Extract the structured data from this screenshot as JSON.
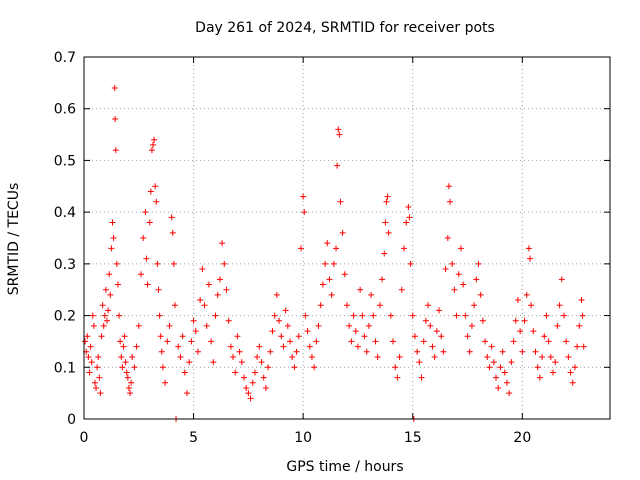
{
  "chart_data": {
    "type": "scatter",
    "title": "Day 261 of 2024, SRMTID for receiver pots",
    "xlabel": "GPS time / hours",
    "ylabel": "SRMTID / TECUs",
    "xlim": [
      0,
      24
    ],
    "ylim": [
      0,
      0.7
    ],
    "xticks": [
      "0",
      "5",
      "10",
      "15",
      "20"
    ],
    "yticks": [
      "0",
      "0.1",
      "0.2",
      "0.3",
      "0.4",
      "0.5",
      "0.6",
      "0.7"
    ],
    "grid": true,
    "marker": "+",
    "color": "#ff0000",
    "series": [
      {
        "name": "pots",
        "points": [
          [
            0.05,
            0.15
          ],
          [
            0.1,
            0.13
          ],
          [
            0.15,
            0.16
          ],
          [
            0.2,
            0.12
          ],
          [
            0.25,
            0.09
          ],
          [
            0.3,
            0.14
          ],
          [
            0.35,
            0.11
          ],
          [
            0.4,
            0.2
          ],
          [
            0.45,
            0.18
          ],
          [
            0.5,
            0.07
          ],
          [
            0.55,
            0.06
          ],
          [
            0.6,
            0.1
          ],
          [
            0.65,
            0.12
          ],
          [
            0.7,
            0.08
          ],
          [
            0.75,
            0.05
          ],
          [
            0.8,
            0.16
          ],
          [
            0.85,
            0.22
          ],
          [
            0.9,
            0.18
          ],
          [
            0.95,
            0.2
          ],
          [
            1.0,
            0.25
          ],
          [
            1.05,
            0.19
          ],
          [
            1.1,
            0.21
          ],
          [
            1.15,
            0.28
          ],
          [
            1.2,
            0.24
          ],
          [
            1.25,
            0.33
          ],
          [
            1.3,
            0.38
          ],
          [
            1.35,
            0.35
          ],
          [
            1.4,
            0.64
          ],
          [
            1.42,
            0.58
          ],
          [
            1.45,
            0.52
          ],
          [
            1.5,
            0.3
          ],
          [
            1.55,
            0.26
          ],
          [
            1.6,
            0.2
          ],
          [
            1.65,
            0.15
          ],
          [
            1.7,
            0.12
          ],
          [
            1.75,
            0.1
          ],
          [
            1.8,
            0.14
          ],
          [
            1.85,
            0.16
          ],
          [
            1.9,
            0.11
          ],
          [
            1.95,
            0.09
          ],
          [
            2.0,
            0.08
          ],
          [
            2.05,
            0.06
          ],
          [
            2.1,
            0.05
          ],
          [
            2.15,
            0.07
          ],
          [
            2.2,
            0.12
          ],
          [
            2.3,
            0.1
          ],
          [
            2.4,
            0.14
          ],
          [
            2.5,
            0.18
          ],
          [
            2.6,
            0.28
          ],
          [
            2.7,
            0.35
          ],
          [
            2.8,
            0.4
          ],
          [
            2.85,
            0.31
          ],
          [
            2.9,
            0.26
          ],
          [
            3.0,
            0.38
          ],
          [
            3.05,
            0.44
          ],
          [
            3.1,
            0.52
          ],
          [
            3.15,
            0.53
          ],
          [
            3.2,
            0.54
          ],
          [
            3.25,
            0.45
          ],
          [
            3.3,
            0.42
          ],
          [
            3.35,
            0.3
          ],
          [
            3.4,
            0.25
          ],
          [
            3.45,
            0.2
          ],
          [
            3.5,
            0.16
          ],
          [
            3.55,
            0.13
          ],
          [
            3.6,
            0.1
          ],
          [
            3.7,
            0.07
          ],
          [
            3.8,
            0.15
          ],
          [
            3.9,
            0.18
          ],
          [
            4.0,
            0.39
          ],
          [
            4.05,
            0.36
          ],
          [
            4.1,
            0.3
          ],
          [
            4.15,
            0.22
          ],
          [
            4.2,
            0.0
          ],
          [
            4.3,
            0.14
          ],
          [
            4.4,
            0.12
          ],
          [
            4.5,
            0.16
          ],
          [
            4.6,
            0.09
          ],
          [
            4.7,
            0.05
          ],
          [
            4.8,
            0.11
          ],
          [
            4.9,
            0.15
          ],
          [
            5.0,
            0.19
          ],
          [
            5.1,
            0.17
          ],
          [
            5.2,
            0.13
          ],
          [
            5.3,
            0.23
          ],
          [
            5.4,
            0.29
          ],
          [
            5.5,
            0.22
          ],
          [
            5.6,
            0.18
          ],
          [
            5.7,
            0.26
          ],
          [
            5.8,
            0.15
          ],
          [
            5.9,
            0.11
          ],
          [
            6.0,
            0.2
          ],
          [
            6.1,
            0.24
          ],
          [
            6.2,
            0.27
          ],
          [
            6.3,
            0.34
          ],
          [
            6.4,
            0.3
          ],
          [
            6.5,
            0.25
          ],
          [
            6.6,
            0.19
          ],
          [
            6.7,
            0.14
          ],
          [
            6.8,
            0.12
          ],
          [
            6.9,
            0.09
          ],
          [
            7.0,
            0.16
          ],
          [
            7.1,
            0.13
          ],
          [
            7.2,
            0.11
          ],
          [
            7.3,
            0.08
          ],
          [
            7.4,
            0.06
          ],
          [
            7.5,
            0.05
          ],
          [
            7.6,
            0.04
          ],
          [
            7.7,
            0.07
          ],
          [
            7.8,
            0.09
          ],
          [
            7.9,
            0.12
          ],
          [
            8.0,
            0.14
          ],
          [
            8.1,
            0.11
          ],
          [
            8.2,
            0.08
          ],
          [
            8.3,
            0.06
          ],
          [
            8.4,
            0.1
          ],
          [
            8.5,
            0.13
          ],
          [
            8.6,
            0.17
          ],
          [
            8.7,
            0.2
          ],
          [
            8.8,
            0.24
          ],
          [
            8.9,
            0.19
          ],
          [
            9.0,
            0.16
          ],
          [
            9.1,
            0.14
          ],
          [
            9.2,
            0.21
          ],
          [
            9.3,
            0.18
          ],
          [
            9.4,
            0.15
          ],
          [
            9.5,
            0.12
          ],
          [
            9.6,
            0.1
          ],
          [
            9.7,
            0.13
          ],
          [
            9.8,
            0.16
          ],
          [
            9.9,
            0.33
          ],
          [
            10.0,
            0.43
          ],
          [
            10.05,
            0.4
          ],
          [
            10.1,
            0.2
          ],
          [
            10.2,
            0.17
          ],
          [
            10.3,
            0.14
          ],
          [
            10.4,
            0.12
          ],
          [
            10.5,
            0.1
          ],
          [
            10.6,
            0.15
          ],
          [
            10.7,
            0.18
          ],
          [
            10.8,
            0.22
          ],
          [
            10.9,
            0.26
          ],
          [
            11.0,
            0.3
          ],
          [
            11.1,
            0.34
          ],
          [
            11.2,
            0.27
          ],
          [
            11.3,
            0.24
          ],
          [
            11.4,
            0.3
          ],
          [
            11.5,
            0.33
          ],
          [
            11.55,
            0.49
          ],
          [
            11.6,
            0.56
          ],
          [
            11.65,
            0.55
          ],
          [
            11.7,
            0.42
          ],
          [
            11.8,
            0.36
          ],
          [
            11.9,
            0.28
          ],
          [
            12.0,
            0.22
          ],
          [
            12.1,
            0.18
          ],
          [
            12.2,
            0.15
          ],
          [
            12.3,
            0.2
          ],
          [
            12.4,
            0.17
          ],
          [
            12.5,
            0.14
          ],
          [
            12.6,
            0.25
          ],
          [
            12.7,
            0.2
          ],
          [
            12.8,
            0.16
          ],
          [
            12.9,
            0.13
          ],
          [
            13.0,
            0.18
          ],
          [
            13.1,
            0.24
          ],
          [
            13.2,
            0.2
          ],
          [
            13.3,
            0.15
          ],
          [
            13.4,
            0.12
          ],
          [
            13.5,
            0.22
          ],
          [
            13.6,
            0.27
          ],
          [
            13.7,
            0.32
          ],
          [
            13.75,
            0.38
          ],
          [
            13.8,
            0.42
          ],
          [
            13.85,
            0.43
          ],
          [
            13.9,
            0.36
          ],
          [
            14.0,
            0.2
          ],
          [
            14.1,
            0.15
          ],
          [
            14.2,
            0.1
          ],
          [
            14.3,
            0.08
          ],
          [
            14.4,
            0.12
          ],
          [
            14.5,
            0.25
          ],
          [
            14.6,
            0.33
          ],
          [
            14.7,
            0.38
          ],
          [
            14.8,
            0.41
          ],
          [
            14.85,
            0.39
          ],
          [
            14.9,
            0.3
          ],
          [
            15.0,
            0.2
          ],
          [
            15.05,
            0.0
          ],
          [
            15.1,
            0.16
          ],
          [
            15.2,
            0.13
          ],
          [
            15.3,
            0.11
          ],
          [
            15.4,
            0.08
          ],
          [
            15.5,
            0.15
          ],
          [
            15.6,
            0.19
          ],
          [
            15.7,
            0.22
          ],
          [
            15.8,
            0.18
          ],
          [
            15.9,
            0.14
          ],
          [
            16.0,
            0.12
          ],
          [
            16.1,
            0.17
          ],
          [
            16.2,
            0.21
          ],
          [
            16.3,
            0.16
          ],
          [
            16.4,
            0.13
          ],
          [
            16.5,
            0.29
          ],
          [
            16.6,
            0.35
          ],
          [
            16.65,
            0.45
          ],
          [
            16.7,
            0.42
          ],
          [
            16.8,
            0.3
          ],
          [
            16.9,
            0.25
          ],
          [
            17.0,
            0.2
          ],
          [
            17.1,
            0.28
          ],
          [
            17.2,
            0.33
          ],
          [
            17.3,
            0.26
          ],
          [
            17.4,
            0.2
          ],
          [
            17.5,
            0.16
          ],
          [
            17.6,
            0.13
          ],
          [
            17.7,
            0.18
          ],
          [
            17.8,
            0.22
          ],
          [
            17.9,
            0.27
          ],
          [
            18.0,
            0.3
          ],
          [
            18.1,
            0.24
          ],
          [
            18.2,
            0.19
          ],
          [
            18.3,
            0.15
          ],
          [
            18.4,
            0.12
          ],
          [
            18.5,
            0.1
          ],
          [
            18.6,
            0.14
          ],
          [
            18.7,
            0.11
          ],
          [
            18.8,
            0.08
          ],
          [
            18.9,
            0.06
          ],
          [
            19.0,
            0.1
          ],
          [
            19.1,
            0.13
          ],
          [
            19.2,
            0.09
          ],
          [
            19.3,
            0.07
          ],
          [
            19.4,
            0.05
          ],
          [
            19.5,
            0.11
          ],
          [
            19.6,
            0.15
          ],
          [
            19.7,
            0.19
          ],
          [
            19.8,
            0.23
          ],
          [
            19.9,
            0.17
          ],
          [
            20.0,
            0.13
          ],
          [
            20.1,
            0.19
          ],
          [
            20.2,
            0.24
          ],
          [
            20.3,
            0.33
          ],
          [
            20.35,
            0.31
          ],
          [
            20.4,
            0.22
          ],
          [
            20.5,
            0.17
          ],
          [
            20.6,
            0.13
          ],
          [
            20.7,
            0.1
          ],
          [
            20.8,
            0.08
          ],
          [
            20.9,
            0.12
          ],
          [
            21.0,
            0.16
          ],
          [
            21.1,
            0.2
          ],
          [
            21.2,
            0.15
          ],
          [
            21.3,
            0.12
          ],
          [
            21.4,
            0.09
          ],
          [
            21.5,
            0.11
          ],
          [
            21.6,
            0.18
          ],
          [
            21.7,
            0.22
          ],
          [
            21.8,
            0.27
          ],
          [
            21.9,
            0.2
          ],
          [
            22.0,
            0.15
          ],
          [
            22.1,
            0.12
          ],
          [
            22.2,
            0.09
          ],
          [
            22.3,
            0.07
          ],
          [
            22.4,
            0.1
          ],
          [
            22.5,
            0.14
          ],
          [
            22.6,
            0.18
          ],
          [
            22.7,
            0.23
          ],
          [
            22.75,
            0.2
          ],
          [
            22.8,
            0.14
          ]
        ]
      }
    ]
  }
}
